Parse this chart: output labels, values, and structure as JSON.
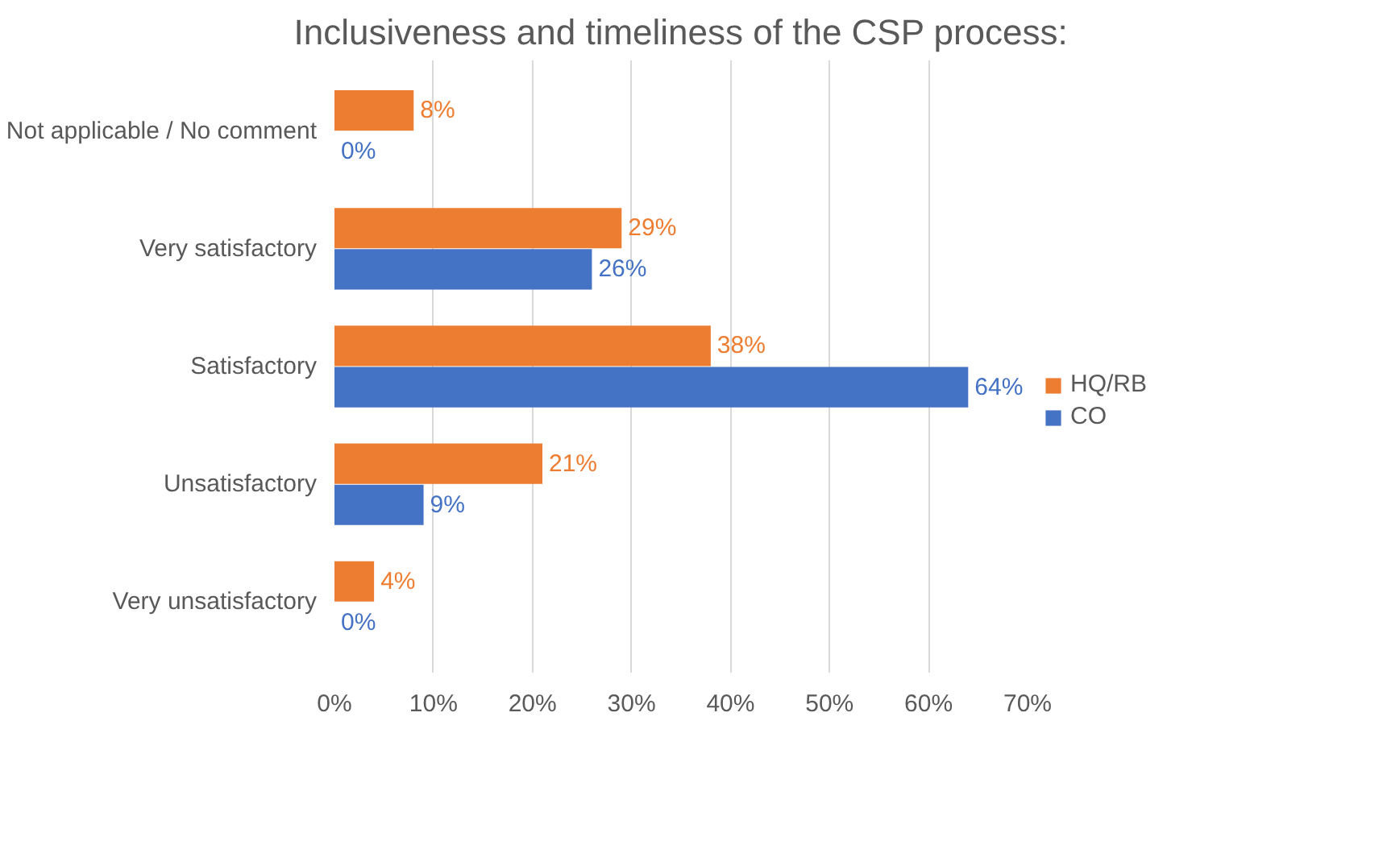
{
  "chart_data": {
    "type": "bar",
    "orientation": "horizontal",
    "title": "Inclusiveness and timeliness of the CSP process:",
    "categories": [
      "Not applicable / No comment",
      "Very satisfactory",
      "Satisfactory",
      "Unsatisfactory",
      "Very unsatisfactory"
    ],
    "series": [
      {
        "name": "HQ/RB",
        "color": "#ed7d31",
        "values": [
          8,
          29,
          38,
          21,
          4
        ],
        "value_labels": [
          "8%",
          "29%",
          "38%",
          "21%",
          "4%"
        ]
      },
      {
        "name": "CO",
        "color": "#4472c4",
        "values": [
          0,
          26,
          64,
          9,
          0
        ],
        "value_labels": [
          "0%",
          "26%",
          "64%",
          "9%",
          "0%"
        ]
      }
    ],
    "xlim": [
      0,
      70
    ],
    "xticks": [
      {
        "value": 0,
        "label": "0%"
      },
      {
        "value": 10,
        "label": "10%"
      },
      {
        "value": 20,
        "label": "20%"
      },
      {
        "value": 30,
        "label": "30%"
      },
      {
        "value": 40,
        "label": "40%"
      },
      {
        "value": 50,
        "label": "50%"
      },
      {
        "value": 60,
        "label": "60%"
      },
      {
        "value": 70,
        "label": "70%"
      }
    ],
    "grid": "x",
    "legend": "right"
  }
}
